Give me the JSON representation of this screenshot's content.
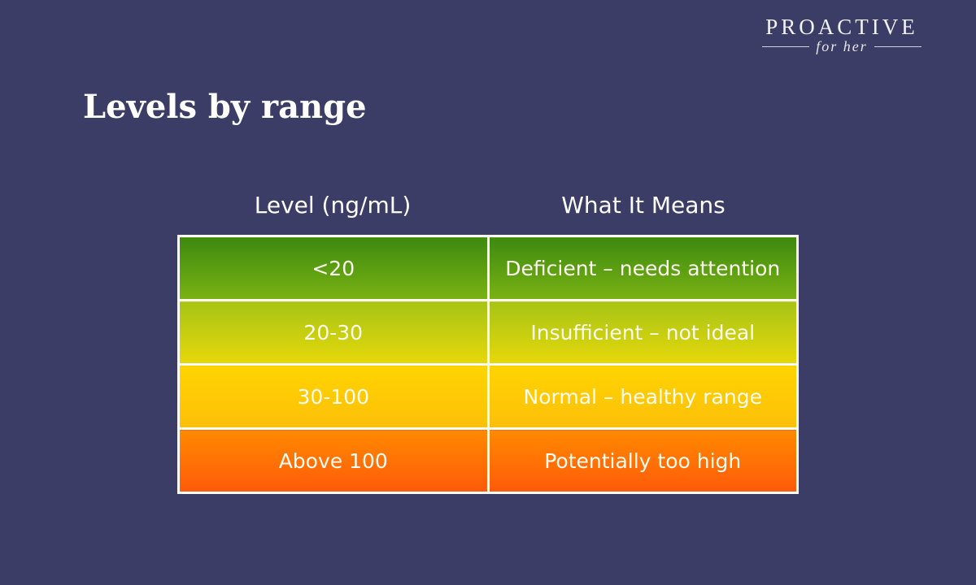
{
  "logo": {
    "main": "PROACTIVE",
    "sub": "for her"
  },
  "title": "Levels by range",
  "table": {
    "headers": [
      "Level (ng/mL)",
      "What It Means"
    ],
    "rows": [
      [
        "<20",
        "Deficient – needs attention"
      ],
      [
        "20-30",
        "Insufficient – not ideal"
      ],
      [
        "30-100",
        "Normal – healthy range"
      ],
      [
        "Above 100",
        "Potentially too high"
      ]
    ]
  }
}
